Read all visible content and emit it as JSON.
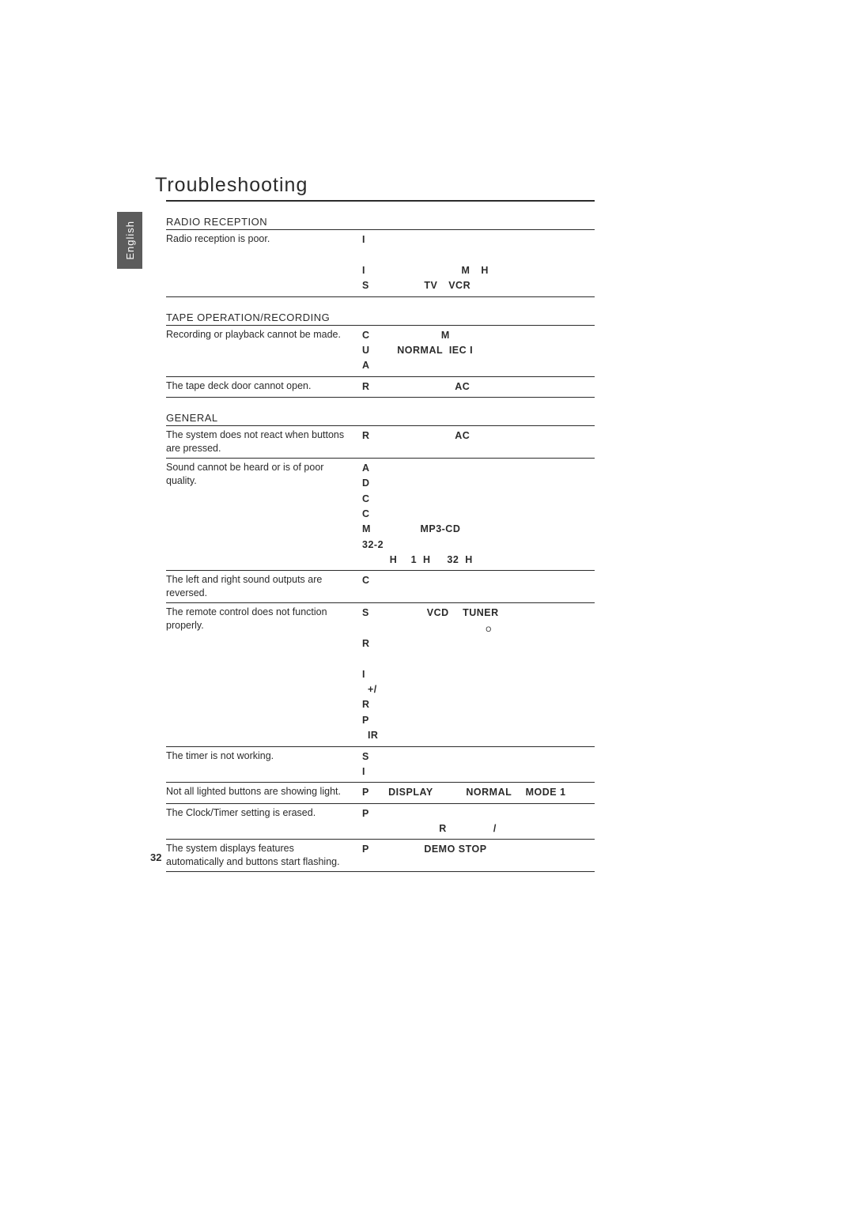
{
  "side_tab": "English",
  "page_title": "Troubleshooting",
  "page_number": "32",
  "sections": [
    {
      "heading": "RADIO RECEPTION",
      "rows": [
        {
          "problem": "Radio reception is poor.",
          "solution": "<span class='tok'>I</span>\n\n<span class='tok'>I</span>                                   <span class='tok'>M</span>    <span class='tok'>H</span>\n<span class='tok'>S</span>                    <span class='tok'>TV</span>    <span class='tok'>VCR</span>"
        }
      ]
    },
    {
      "heading": "TAPE OPERATION/RECORDING",
      "rows": [
        {
          "problem": "Recording or playback cannot be made.",
          "solution": "<span class='tok'>C</span>                          <span class='tok'>M</span>\n<span class='tok'>U</span>          <span class='tok'>NORMAL  IEC I</span>\n<span class='tok'>A</span>"
        },
        {
          "problem": "The tape deck door cannot open.",
          "solution": "<span class='tok'>R</span>                               <span class='tok'>AC</span>"
        }
      ]
    },
    {
      "heading": "GENERAL",
      "rows": [
        {
          "problem": "The system does not react when buttons are pressed.",
          "solution": "<span class='tok'>R</span>                               <span class='tok'>AC</span>"
        },
        {
          "problem": "Sound cannot be heard or is of poor quality.",
          "solution": "<span class='tok'>A</span>\n<span class='tok'>D</span>\n<span class='tok'>C</span>\n<span class='tok'>C</span>\n<span class='tok'>M</span>                  <span class='tok'>MP3-CD</span>\n<span class='tok'>32-2</span>\n          <span class='tok'>H</span>     <span class='tok'>1  H</span>      <span class='tok'>32  H</span>"
        },
        {
          "problem": "The left and right sound outputs are reversed.",
          "solution": "<span class='tok'>C</span>"
        },
        {
          "problem": "The remote control does not function properly.",
          "solution": "<span class='tok'>S</span>                     <span class='tok'>VCD</span>     <span class='tok'>TUNER</span>\n                                             <span style='font-size:9px'>O</span>\n<span class='tok'>R</span>\n\n<span class='tok'>I</span>\n  <span class='tok'>+/</span>\n<span class='tok'>R</span>\n<span class='tok'>P</span>\n  <span class='tok'>IR</span>"
        },
        {
          "problem": "The timer is not working.",
          "solution": "<span class='tok'>S</span>\n<span class='tok'>I</span>"
        },
        {
          "problem": "Not all lighted buttons are showing light.",
          "solution": "<span class='tok'>P</span>       <span class='tok'>DISPLAY</span>            <span class='tok'>NORMAL</span>     <span class='tok'>MODE 1</span>"
        },
        {
          "problem": "The Clock/Timer setting is erased.",
          "solution": "<span class='tok'>P</span>\n                            <span class='tok'>R</span>                 <span class='tok'>/</span>"
        },
        {
          "problem": "The system displays features automatically and buttons start flashing.",
          "solution": "<span class='tok'>P</span>                    <span class='tok'>DEMO STOP</span>"
        }
      ]
    }
  ]
}
